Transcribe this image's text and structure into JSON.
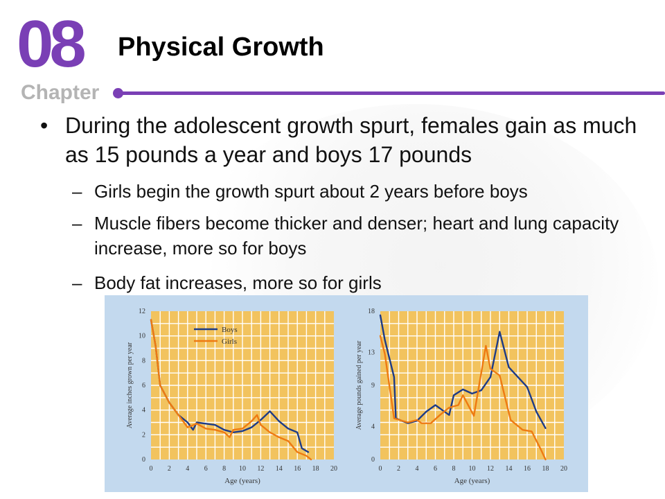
{
  "header": {
    "chapter_number": "08",
    "chapter_word": "Chapter",
    "title": "Physical Growth"
  },
  "content": {
    "bullet_mark": "•",
    "sub_mark": "–",
    "main_bullet": "During the adolescent growth spurt, females gain as much as 15 pounds a year and boys 17 pounds",
    "sub_bullets": [
      "Girls begin the growth spurt about 2 years before boys",
      "Muscle fibers become thicker and denser; heart and lung capacity increase, more so for boys",
      "Body fat increases, more so for girls"
    ]
  },
  "colors": {
    "accent": "#7a3fb5",
    "chapter_gray": "#b4b4b4",
    "panel_bg": "#c3d9ee",
    "plot_bg": "#f2c35e",
    "grid": "#ffffff",
    "boys": "#1d3b87",
    "girls": "#ee7a12"
  },
  "chart_data": [
    {
      "type": "line",
      "xlabel": "Age (years)",
      "ylabel": "Average inches grown per year",
      "xlim": [
        0,
        20
      ],
      "ylim": [
        0,
        12
      ],
      "xticks": [
        0,
        2,
        4,
        6,
        8,
        10,
        12,
        14,
        16,
        18,
        20
      ],
      "yticks": [
        0,
        2,
        4,
        6,
        8,
        10,
        12
      ],
      "legend": "top-left",
      "series": [
        {
          "name": "Boys",
          "color": "#1d3b87",
          "points": [
            [
              0,
              11.3
            ],
            [
              0.5,
              9.2
            ],
            [
              1,
              6.0
            ],
            [
              2,
              4.6
            ],
            [
              3,
              3.6
            ],
            [
              4,
              3.0
            ],
            [
              4.6,
              2.4
            ],
            [
              5,
              3.0
            ],
            [
              6,
              2.9
            ],
            [
              7,
              2.8
            ],
            [
              8,
              2.4
            ],
            [
              9,
              2.2
            ],
            [
              10,
              2.3
            ],
            [
              11,
              2.6
            ],
            [
              12,
              3.2
            ],
            [
              13,
              3.9
            ],
            [
              14,
              3.1
            ],
            [
              15,
              2.5
            ],
            [
              16,
              2.2
            ],
            [
              16.5,
              0.9
            ],
            [
              17.2,
              0.6
            ]
          ]
        },
        {
          "name": "Girls",
          "color": "#ee7a12",
          "points": [
            [
              0,
              11.3
            ],
            [
              0.5,
              9.2
            ],
            [
              1,
              6.0
            ],
            [
              2,
              4.6
            ],
            [
              3,
              3.6
            ],
            [
              4,
              2.6
            ],
            [
              5,
              2.9
            ],
            [
              6,
              2.5
            ],
            [
              7,
              2.4
            ],
            [
              8,
              2.2
            ],
            [
              8.6,
              1.8
            ],
            [
              9,
              2.4
            ],
            [
              10,
              2.5
            ],
            [
              11,
              3.1
            ],
            [
              11.6,
              3.6
            ],
            [
              12,
              2.8
            ],
            [
              13,
              2.2
            ],
            [
              14,
              1.8
            ],
            [
              15,
              1.5
            ],
            [
              16,
              0.6
            ],
            [
              17,
              0.3
            ],
            [
              17.5,
              0
            ]
          ]
        }
      ]
    },
    {
      "type": "line",
      "xlabel": "Age (years)",
      "ylabel": "Average pounds gained per year",
      "xlim": [
        0,
        20
      ],
      "ylim": [
        0,
        18
      ],
      "xticks": [
        0,
        2,
        4,
        6,
        8,
        10,
        12,
        14,
        16,
        18,
        20
      ],
      "yticks": [
        0,
        4,
        9,
        13,
        18
      ],
      "legend": "none",
      "series": [
        {
          "name": "Boys",
          "color": "#1d3b87",
          "points": [
            [
              0,
              17.5
            ],
            [
              0.5,
              14.5
            ],
            [
              1.5,
              10.0
            ],
            [
              1.7,
              5.0
            ],
            [
              3,
              4.4
            ],
            [
              4,
              4.7
            ],
            [
              5,
              5.8
            ],
            [
              6,
              6.6
            ],
            [
              7.5,
              5.4
            ],
            [
              8,
              7.8
            ],
            [
              9,
              8.5
            ],
            [
              10,
              8.0
            ],
            [
              11,
              8.4
            ],
            [
              12,
              10.0
            ],
            [
              13,
              15.5
            ],
            [
              14,
              11.2
            ],
            [
              16,
              8.8
            ],
            [
              17,
              5.8
            ],
            [
              18,
              3.8
            ]
          ]
        },
        {
          "name": "Girls",
          "color": "#ee7a12",
          "points": [
            [
              0,
              15.0
            ],
            [
              0.5,
              12.8
            ],
            [
              1.5,
              5.0
            ],
            [
              3,
              4.5
            ],
            [
              4,
              4.8
            ],
            [
              4.5,
              4.4
            ],
            [
              5.5,
              4.4
            ],
            [
              6.5,
              5.4
            ],
            [
              7.5,
              6.3
            ],
            [
              8.5,
              6.6
            ],
            [
              9,
              7.8
            ],
            [
              10.2,
              5.3
            ],
            [
              11.5,
              13.8
            ],
            [
              12,
              11.0
            ],
            [
              13,
              10.2
            ],
            [
              14.2,
              4.8
            ],
            [
              15.5,
              3.6
            ],
            [
              16.5,
              3.4
            ],
            [
              17.5,
              1.2
            ],
            [
              18,
              0
            ]
          ]
        }
      ]
    }
  ]
}
